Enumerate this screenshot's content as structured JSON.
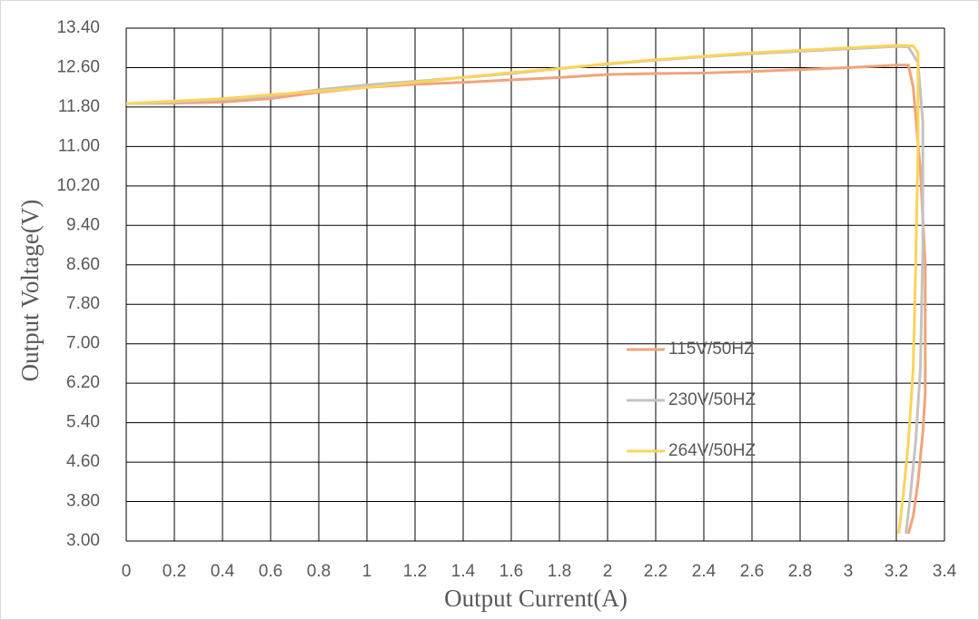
{
  "chart_data": {
    "type": "line",
    "x_label": "Output Current(A)",
    "y_label": "Output  Voltage(V)",
    "xlim": [
      0,
      3.4
    ],
    "xticks": [
      0,
      0.2,
      0.4,
      0.6,
      0.8,
      1,
      1.2,
      1.4,
      1.6,
      1.8,
      2,
      2.2,
      2.4,
      2.6,
      2.8,
      3,
      3.2,
      3.4
    ],
    "ylim": [
      3,
      13.4
    ],
    "yticks": [
      {
        "value": 3,
        "label": "3.00"
      },
      {
        "value": 3.8,
        "label": "3.80"
      },
      {
        "value": 4.6,
        "label": "4.60"
      },
      {
        "value": 5.4,
        "label": "5.40"
      },
      {
        "value": 6.2,
        "label": "6.20"
      },
      {
        "value": 7,
        "label": "7.00"
      },
      {
        "value": 7.8,
        "label": "7.80"
      },
      {
        "value": 8.6,
        "label": "8.60"
      },
      {
        "value": 9.4,
        "label": "9.40"
      },
      {
        "value": 10.2,
        "label": "10.20"
      },
      {
        "value": 11,
        "label": "11.00"
      },
      {
        "value": 11.8,
        "label": "11.80"
      },
      {
        "value": 12.6,
        "label": "12.60"
      },
      {
        "value": 13.4,
        "label": "13.40"
      }
    ],
    "grid": true,
    "series": [
      {
        "name": "115V/50HZ",
        "color": "#f1a47a",
        "x": [
          0,
          0.2,
          0.4,
          0.6,
          0.8,
          1.0,
          1.2,
          1.4,
          1.6,
          1.8,
          2.0,
          2.2,
          2.4,
          2.6,
          2.8,
          3.0,
          3.2,
          3.25,
          3.27,
          3.3,
          3.32,
          3.32,
          3.31,
          3.29,
          3.27,
          3.25
        ],
        "values": [
          11.87,
          11.88,
          11.9,
          11.97,
          12.1,
          12.2,
          12.26,
          12.3,
          12.35,
          12.4,
          12.46,
          12.48,
          12.49,
          12.52,
          12.56,
          12.6,
          12.65,
          12.65,
          12.2,
          10.5,
          8.6,
          6.0,
          5.2,
          4.2,
          3.5,
          3.15
        ]
      },
      {
        "name": "230V/50HZ",
        "color": "#c3c3c3",
        "x": [
          0,
          0.2,
          0.4,
          0.6,
          0.8,
          1.0,
          1.2,
          1.4,
          1.6,
          1.8,
          2.0,
          2.2,
          2.4,
          2.6,
          2.8,
          3.0,
          3.2,
          3.25,
          3.29,
          3.31,
          3.31,
          3.3,
          3.28,
          3.26,
          3.24
        ],
        "values": [
          11.87,
          11.9,
          11.95,
          12.02,
          12.15,
          12.25,
          12.32,
          12.4,
          12.48,
          12.58,
          12.67,
          12.75,
          12.82,
          12.88,
          12.93,
          12.98,
          13.03,
          13.02,
          12.7,
          11.5,
          9.0,
          6.5,
          5.0,
          4.0,
          3.15
        ]
      },
      {
        "name": "264V/50HZ",
        "color": "#fdd35a",
        "x": [
          0,
          0.2,
          0.4,
          0.6,
          0.8,
          1.0,
          1.2,
          1.4,
          1.6,
          1.8,
          2.0,
          2.2,
          2.4,
          2.6,
          2.8,
          3.0,
          3.2,
          3.27,
          3.29,
          3.29,
          3.28,
          3.27,
          3.25,
          3.23,
          3.21
        ],
        "values": [
          11.87,
          11.92,
          11.97,
          12.05,
          12.12,
          12.2,
          12.3,
          12.4,
          12.5,
          12.58,
          12.68,
          12.76,
          12.83,
          12.9,
          12.95,
          13.0,
          13.05,
          13.04,
          12.9,
          11.0,
          8.5,
          6.5,
          5.0,
          4.0,
          3.15
        ]
      }
    ]
  }
}
